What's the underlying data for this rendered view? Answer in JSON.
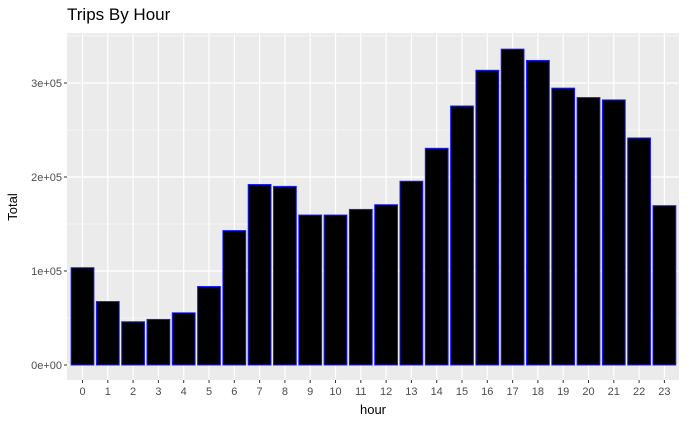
{
  "chart_data": {
    "type": "bar",
    "title": "Trips By Hour",
    "xlabel": "hour",
    "ylabel": "Total",
    "categories": [
      "0",
      "1",
      "2",
      "3",
      "4",
      "5",
      "6",
      "7",
      "8",
      "9",
      "10",
      "11",
      "12",
      "13",
      "14",
      "15",
      "16",
      "17",
      "18",
      "19",
      "20",
      "21",
      "22",
      "23"
    ],
    "values": [
      103500,
      67500,
      46000,
      48500,
      55500,
      83500,
      143000,
      192000,
      190000,
      159500,
      159500,
      165500,
      170500,
      195500,
      230500,
      275500,
      313500,
      336000,
      324000,
      294500,
      284500,
      282000,
      241500,
      169500
    ],
    "ylim": [
      0,
      350000
    ],
    "yticks": [
      {
        "value": 0,
        "label": "0e+00"
      },
      {
        "value": 100000,
        "label": "1e+05"
      },
      {
        "value": 200000,
        "label": "2e+05"
      },
      {
        "value": 300000,
        "label": "3e+05"
      }
    ],
    "grid": true,
    "colors": {
      "bar_fill": "#000000",
      "bar_outline": "#1a1aff",
      "panel": "#ebebeb",
      "grid": "#ffffff"
    }
  }
}
